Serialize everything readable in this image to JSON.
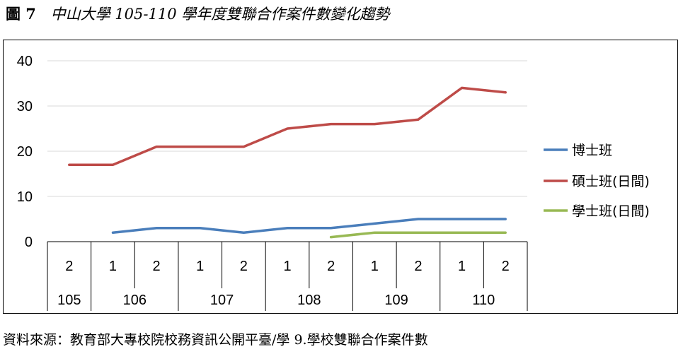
{
  "figure": {
    "number": "圖 7",
    "caption": "中山大學 105-110 學年度雙聯合作案件數變化趨勢"
  },
  "source_note": "資料來源：教育部大專校院校務資訊公開平臺/學 9.學校雙聯合作案件數",
  "chart_data": {
    "type": "line",
    "title": "中山大學 105-110 學年度雙聯合作案件數變化趨勢",
    "xlabel": "",
    "ylabel": "",
    "ylim": [
      0,
      40
    ],
    "yticks": [
      "0",
      "10",
      "20",
      "30",
      "40"
    ],
    "grid": true,
    "legend_position": "right",
    "categories": [
      "105-2",
      "106-1",
      "106-2",
      "107-1",
      "107-2",
      "108-1",
      "108-2",
      "109-1",
      "109-2",
      "110-1",
      "110-2"
    ],
    "semesters": [
      "2",
      "1",
      "2",
      "1",
      "2",
      "1",
      "2",
      "1",
      "2",
      "1",
      "2"
    ],
    "years": [
      {
        "label": "105",
        "span": 1
      },
      {
        "label": "106",
        "span": 2
      },
      {
        "label": "107",
        "span": 2
      },
      {
        "label": "108",
        "span": 2
      },
      {
        "label": "109",
        "span": 2
      },
      {
        "label": "110",
        "span": 2
      }
    ],
    "series": [
      {
        "name": "博士班",
        "color": "#4a7ebb",
        "values": [
          null,
          2,
          3,
          3,
          2,
          3,
          3,
          4,
          5,
          5,
          5
        ]
      },
      {
        "name": "碩士班(日間)",
        "color": "#be4b48",
        "values": [
          17,
          17,
          21,
          21,
          21,
          25,
          26,
          26,
          27,
          34,
          33
        ]
      },
      {
        "name": "學士班(日間)",
        "color": "#98b954",
        "values": [
          null,
          null,
          null,
          null,
          null,
          null,
          1,
          2,
          2,
          2,
          2
        ]
      }
    ]
  }
}
